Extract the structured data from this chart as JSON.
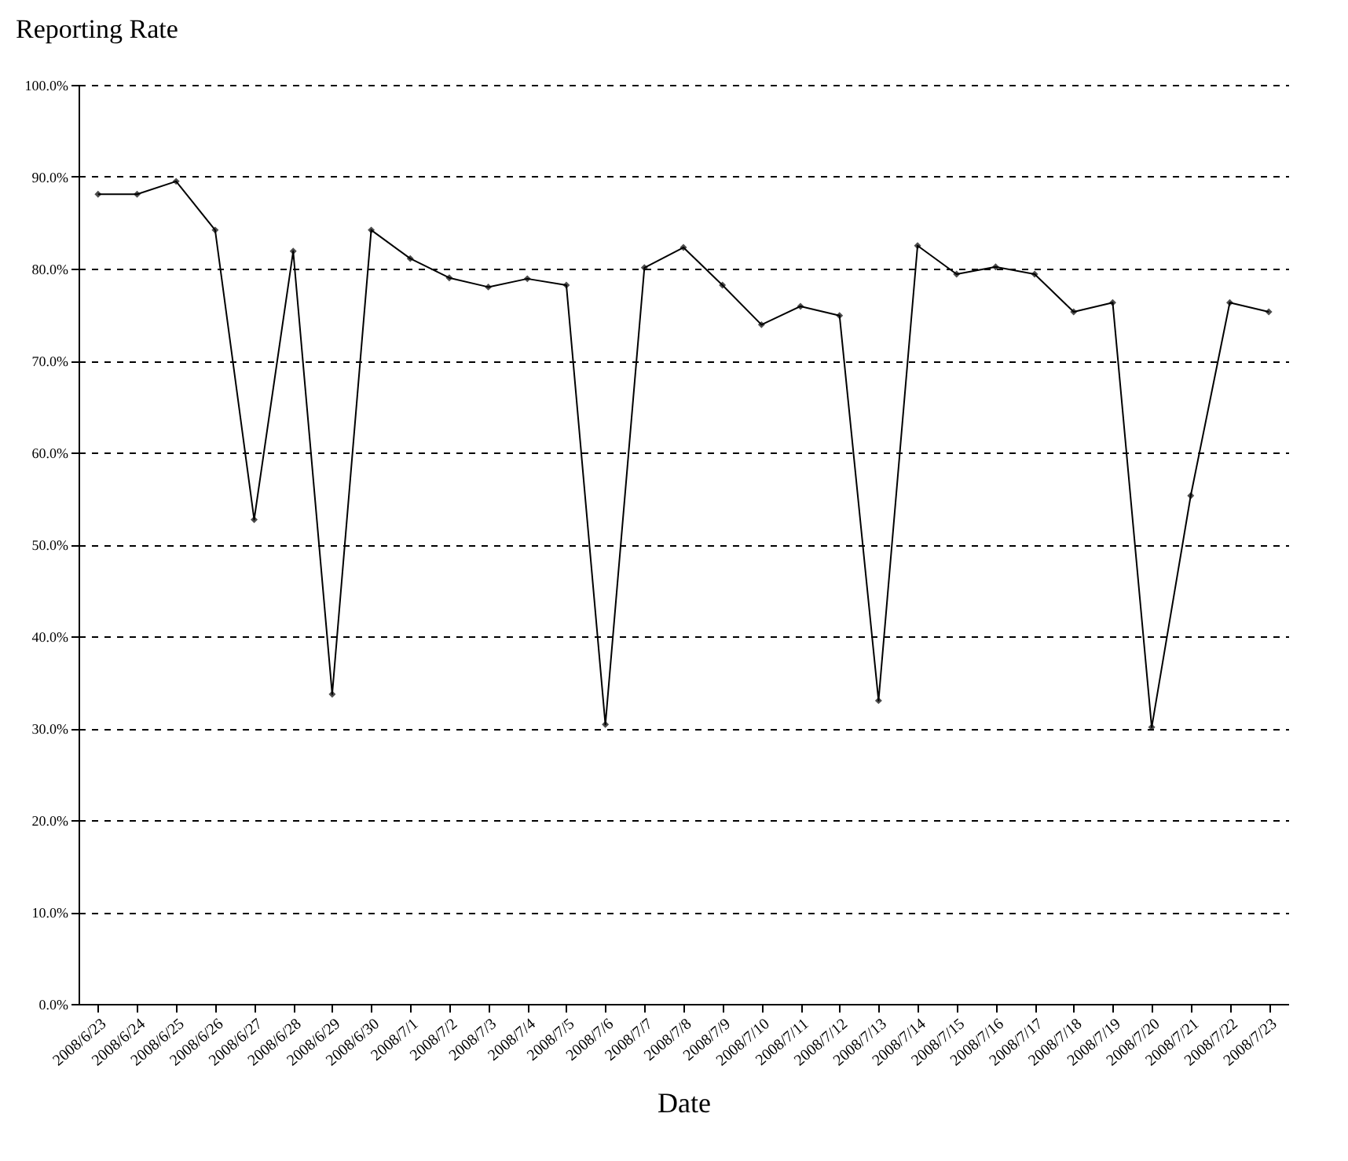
{
  "chart_data": {
    "type": "line",
    "title": "Reporting Rate",
    "xlabel": "Date",
    "categories": [
      "2008/6/23",
      "2008/6/24",
      "2008/6/25",
      "2008/6/26",
      "2008/6/27",
      "2008/6/28",
      "2008/6/29",
      "2008/6/30",
      "2008/7/1",
      "2008/7/2",
      "2008/7/3",
      "2008/7/4",
      "2008/7/5",
      "2008/7/6",
      "2008/7/7",
      "2008/7/8",
      "2008/7/9",
      "2008/7/10",
      "2008/7/11",
      "2008/7/12",
      "2008/7/13",
      "2008/7/14",
      "2008/7/15",
      "2008/7/16",
      "2008/7/17",
      "2008/7/18",
      "2008/7/19",
      "2008/7/20",
      "2008/7/21",
      "2008/7/22",
      "2008/7/23"
    ],
    "series": [
      {
        "color": "#000000",
        "values": [
          88.1,
          88.1,
          89.5,
          84.2,
          52.7,
          81.9,
          33.7,
          84.2,
          81.1,
          79.0,
          78.0,
          78.9,
          78.2,
          30.4,
          80.1,
          82.3,
          78.2,
          73.9,
          75.9,
          74.9,
          33.0,
          82.5,
          79.4,
          80.2,
          79.4,
          75.3,
          76.3,
          30.1,
          55.3,
          76.3,
          75.3
        ]
      }
    ],
    "ylim": [
      0,
      100
    ],
    "yticks": [
      {
        "value": 0,
        "label": "0.0%"
      },
      {
        "value": 10,
        "label": "10.0%"
      },
      {
        "value": 20,
        "label": "20.0%"
      },
      {
        "value": 30,
        "label": "30.0%"
      },
      {
        "value": 40,
        "label": "40.0%"
      },
      {
        "value": 50,
        "label": "50.0%"
      },
      {
        "value": 60,
        "label": "60.0%"
      },
      {
        "value": 70,
        "label": "70.0%"
      },
      {
        "value": 80,
        "label": "80.0%"
      },
      {
        "value": 90,
        "label": "90.0%"
      },
      {
        "value": 100,
        "label": "100.0%"
      }
    ],
    "grid": "y",
    "marker": "diamond",
    "line_style": "solid"
  }
}
